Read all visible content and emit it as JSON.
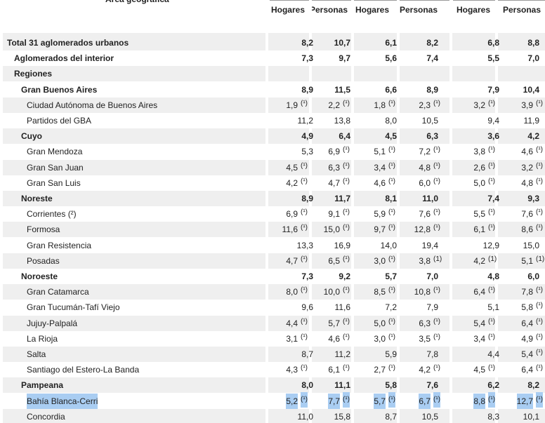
{
  "header": {
    "title": "Área geográfica",
    "columns": [
      "Hogares",
      "Personas",
      "Hogares",
      "Personas",
      "Hogares",
      "Personas"
    ]
  },
  "table": {
    "rows": [
      {
        "label": "Total 31 aglomerados urbanos",
        "level": 0,
        "bold": true,
        "cells": [
          {
            "v": "8,2"
          },
          {
            "v": "10,7"
          },
          {
            "v": "6,1"
          },
          {
            "v": "8,2"
          },
          {
            "v": "6,8"
          },
          {
            "v": "8,8"
          }
        ]
      },
      {
        "label": "Aglomerados del interior",
        "level": 1,
        "bold": true,
        "cells": [
          {
            "v": "7,3"
          },
          {
            "v": "9,7"
          },
          {
            "v": "5,6"
          },
          {
            "v": "7,4"
          },
          {
            "v": "5,5"
          },
          {
            "v": "7,0"
          }
        ]
      },
      {
        "label": "Regiones",
        "level": 1,
        "bold": true,
        "cells": []
      },
      {
        "label": "Gran Buenos Aires",
        "level": 2,
        "bold": true,
        "cells": [
          {
            "v": "8,9"
          },
          {
            "v": "11,5"
          },
          {
            "v": "6,6"
          },
          {
            "v": "8,9"
          },
          {
            "v": "7,9"
          },
          {
            "v": "10,4"
          }
        ]
      },
      {
        "label": "Ciudad Autónoma de Buenos Aires",
        "level": 3,
        "bold": false,
        "cells": [
          {
            "v": "1,9",
            "n": "(¹)"
          },
          {
            "v": "2,2",
            "n": "(¹)"
          },
          {
            "v": "1,8",
            "n": "(¹)"
          },
          {
            "v": "2,3",
            "n": "(¹)"
          },
          {
            "v": "3,2",
            "n": "(¹)"
          },
          {
            "v": "3,9",
            "n": "(¹)"
          }
        ]
      },
      {
        "label": "Partidos del GBA",
        "level": 3,
        "bold": false,
        "cells": [
          {
            "v": "11,2"
          },
          {
            "v": "13,8"
          },
          {
            "v": "8,0"
          },
          {
            "v": "10,5"
          },
          {
            "v": "9,4"
          },
          {
            "v": "11,9"
          }
        ]
      },
      {
        "label": "Cuyo",
        "level": 2,
        "bold": true,
        "cells": [
          {
            "v": "4,9"
          },
          {
            "v": "6,4"
          },
          {
            "v": "4,5"
          },
          {
            "v": "6,3"
          },
          {
            "v": "3,6"
          },
          {
            "v": "4,2"
          }
        ]
      },
      {
        "label": "Gran Mendoza",
        "level": 3,
        "bold": false,
        "cells": [
          {
            "v": "5,3"
          },
          {
            "v": "6,9",
            "n": "(¹)"
          },
          {
            "v": "5,1",
            "n": "(¹)"
          },
          {
            "v": "7,2",
            "n": "(¹)"
          },
          {
            "v": "3,8",
            "n": "(¹)"
          },
          {
            "v": "4,6",
            "n": "(¹)"
          }
        ]
      },
      {
        "label": "Gran San Juan",
        "level": 3,
        "bold": false,
        "cells": [
          {
            "v": "4,5",
            "n": "(¹)"
          },
          {
            "v": "6,3",
            "n": "(¹)"
          },
          {
            "v": "3,4",
            "n": "(¹)"
          },
          {
            "v": "4,8",
            "n": "(¹)"
          },
          {
            "v": "2,6",
            "n": "(¹)"
          },
          {
            "v": "3,2",
            "n": "(¹)"
          }
        ]
      },
      {
        "label": "Gran San Luis",
        "level": 3,
        "bold": false,
        "cells": [
          {
            "v": "4,2",
            "n": "(¹)"
          },
          {
            "v": "4,7",
            "n": "(¹)"
          },
          {
            "v": "4,6",
            "n": "(¹)"
          },
          {
            "v": "6,0",
            "n": "(¹)"
          },
          {
            "v": "5,0",
            "n": "(¹)"
          },
          {
            "v": "4,8",
            "n": "(¹)"
          }
        ]
      },
      {
        "label": "Noreste",
        "level": 2,
        "bold": true,
        "cells": [
          {
            "v": "8,9"
          },
          {
            "v": "11,7"
          },
          {
            "v": "8,1"
          },
          {
            "v": "11,0"
          },
          {
            "v": "7,4"
          },
          {
            "v": "9,3"
          }
        ]
      },
      {
        "label": "Corrientes (²)",
        "level": 3,
        "bold": false,
        "cells": [
          {
            "v": "6,9",
            "n": "(¹)"
          },
          {
            "v": "9,1",
            "n": "(¹)"
          },
          {
            "v": "5,9",
            "n": "(¹)"
          },
          {
            "v": "7,6",
            "n": "(¹)"
          },
          {
            "v": "5,5",
            "n": "(¹)"
          },
          {
            "v": "7,6",
            "n": "(¹)"
          }
        ]
      },
      {
        "label": "Formosa",
        "level": 3,
        "bold": false,
        "cells": [
          {
            "v": "11,6",
            "n": "(¹)"
          },
          {
            "v": "15,0",
            "n": "(¹)"
          },
          {
            "v": "9,7",
            "n": "(¹)"
          },
          {
            "v": "12,8",
            "n": "(¹)"
          },
          {
            "v": "6,1",
            "n": "(¹)"
          },
          {
            "v": "8,6",
            "n": "(¹)"
          }
        ]
      },
      {
        "label": "Gran Resistencia",
        "level": 3,
        "bold": false,
        "cells": [
          {
            "v": "13,3"
          },
          {
            "v": "16,9"
          },
          {
            "v": "14,0"
          },
          {
            "v": "19,4"
          },
          {
            "v": "12,9"
          },
          {
            "v": "15,0"
          }
        ]
      },
      {
        "label": "Posadas",
        "level": 3,
        "bold": false,
        "cells": [
          {
            "v": "4,7",
            "n": "(¹)"
          },
          {
            "v": "6,5",
            "n": "(¹)"
          },
          {
            "v": "3,0",
            "n": "(¹)"
          },
          {
            "v": "3,8",
            "n": "(1)"
          },
          {
            "v": "4,2",
            "n": "(1)"
          },
          {
            "v": "5,1",
            "n": "(1)"
          }
        ]
      },
      {
        "label": "Noroeste",
        "level": 2,
        "bold": true,
        "cells": [
          {
            "v": "7,3"
          },
          {
            "v": "9,2"
          },
          {
            "v": "5,7"
          },
          {
            "v": "7,0"
          },
          {
            "v": "4,8"
          },
          {
            "v": "6,0"
          }
        ]
      },
      {
        "label": "Gran Catamarca",
        "level": 3,
        "bold": false,
        "cells": [
          {
            "v": "8,0",
            "n": "(¹)"
          },
          {
            "v": "10,0",
            "n": "(¹)"
          },
          {
            "v": "8,5",
            "n": "(¹)"
          },
          {
            "v": "10,8",
            "n": "(¹)"
          },
          {
            "v": "6,4",
            "n": "(¹)"
          },
          {
            "v": "7,8",
            "n": "(¹)"
          }
        ]
      },
      {
        "label": "Gran Tucumán-Tafí Viejo",
        "level": 3,
        "bold": false,
        "cells": [
          {
            "v": "9,6"
          },
          {
            "v": "11,6"
          },
          {
            "v": "7,2"
          },
          {
            "v": "7,9"
          },
          {
            "v": "5,1"
          },
          {
            "v": "5,8",
            "n": "(¹)"
          }
        ]
      },
      {
        "label": "Jujuy-Palpalá",
        "level": 3,
        "bold": false,
        "cells": [
          {
            "v": "4,4",
            "n": "(¹)"
          },
          {
            "v": "5,7",
            "n": "(¹)"
          },
          {
            "v": "5,0",
            "n": "(¹)"
          },
          {
            "v": "6,3",
            "n": "(¹)"
          },
          {
            "v": "5,4",
            "n": "(¹)"
          },
          {
            "v": "6,4",
            "n": "(¹)"
          }
        ]
      },
      {
        "label": "La Rioja",
        "level": 3,
        "bold": false,
        "cells": [
          {
            "v": "3,1",
            "n": "(¹)"
          },
          {
            "v": "4,6",
            "n": "(¹)"
          },
          {
            "v": "3,0",
            "n": "(¹)"
          },
          {
            "v": "3,5",
            "n": "(¹)"
          },
          {
            "v": "3,4",
            "n": "(¹)"
          },
          {
            "v": "4,9",
            "n": "(¹)"
          }
        ]
      },
      {
        "label": "Salta",
        "level": 3,
        "bold": false,
        "cells": [
          {
            "v": "8,7"
          },
          {
            "v": "11,2"
          },
          {
            "v": "5,9"
          },
          {
            "v": "7,8"
          },
          {
            "v": "4,4"
          },
          {
            "v": "5,4",
            "n": "(¹)"
          }
        ]
      },
      {
        "label": "Santiago del Estero-La Banda",
        "level": 3,
        "bold": false,
        "cells": [
          {
            "v": "4,3",
            "n": "(¹)"
          },
          {
            "v": "6,1",
            "n": "(¹)"
          },
          {
            "v": "2,7",
            "n": "(¹)"
          },
          {
            "v": "4,2",
            "n": "(¹)"
          },
          {
            "v": "4,5",
            "n": "(¹)"
          },
          {
            "v": "6,4",
            "n": "(¹)"
          }
        ]
      },
      {
        "label": "Pampeana",
        "level": 2,
        "bold": true,
        "cells": [
          {
            "v": "8,0"
          },
          {
            "v": "11,1"
          },
          {
            "v": "5,8"
          },
          {
            "v": "7,6"
          },
          {
            "v": "6,2"
          },
          {
            "v": "8,2"
          }
        ]
      },
      {
        "label": "Bahía Blanca-Cerri",
        "level": 3,
        "bold": false,
        "highlighted": true,
        "cells": [
          {
            "v": "5,2",
            "n": "(¹)"
          },
          {
            "v": "7,7",
            "n": "(¹)"
          },
          {
            "v": "5,7",
            "n": "(¹)"
          },
          {
            "v": "6,7",
            "n": "(¹)"
          },
          {
            "v": "8,8",
            "n": "(¹)"
          },
          {
            "v": "12,7",
            "n": "(¹)"
          }
        ]
      },
      {
        "label": "Concordia",
        "level": 3,
        "bold": false,
        "cells": [
          {
            "v": "11,0"
          },
          {
            "v": "15,8"
          },
          {
            "v": "8,7"
          },
          {
            "v": "10,5"
          },
          {
            "v": "8,3"
          },
          {
            "v": "10,1"
          }
        ]
      }
    ]
  }
}
